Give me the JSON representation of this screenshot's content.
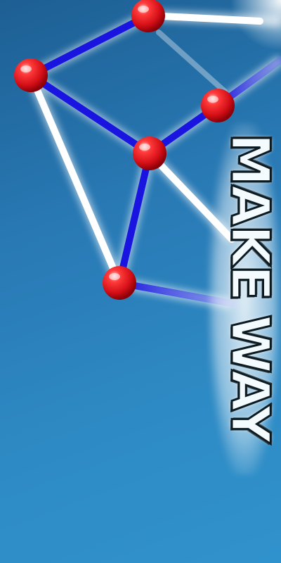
{
  "title": {
    "line1": "MAKE",
    "line2": "WAY"
  },
  "colors": {
    "background_top": "#1d5f93",
    "background_bottom": "#3092cc",
    "edge_white": "#ffffff",
    "edge_blue": "#1a14e0",
    "node_red": "#e0141c"
  },
  "graph": {
    "nodes": [
      {
        "id": "A"
      },
      {
        "id": "B"
      },
      {
        "id": "C"
      },
      {
        "id": "D"
      },
      {
        "id": "E"
      }
    ],
    "edges": [
      {
        "from": "A",
        "to": "B",
        "style": "blue"
      },
      {
        "from": "A",
        "to": "D",
        "style": "blue"
      },
      {
        "from": "A",
        "to": "E",
        "style": "white"
      },
      {
        "from": "D",
        "to": "E",
        "style": "blue"
      },
      {
        "from": "C",
        "to": "D",
        "style": "blue"
      },
      {
        "from": "B",
        "to": "offscreen-right",
        "style": "white"
      },
      {
        "from": "C",
        "to": "offscreen-right",
        "style": "blue"
      },
      {
        "from": "D",
        "to": "offscreen-right",
        "style": "white"
      },
      {
        "from": "E",
        "to": "offscreen-right",
        "style": "blue"
      }
    ]
  }
}
